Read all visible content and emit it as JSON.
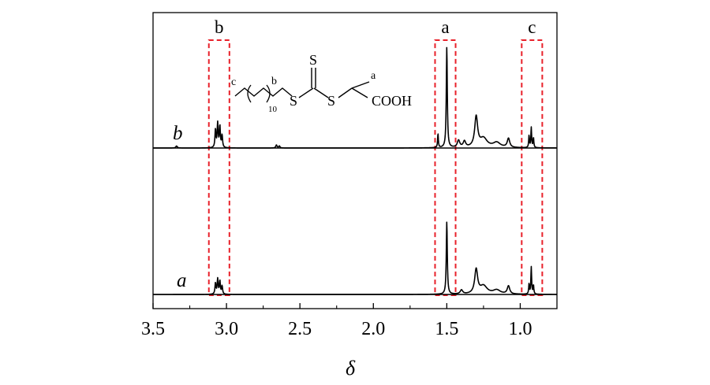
{
  "chart_data": {
    "type": "line",
    "title": "",
    "xlabel": "δ",
    "ylabel": "",
    "xlim": [
      3.5,
      0.75
    ],
    "x_reversed": true,
    "xticks": [
      3.5,
      3.0,
      2.5,
      2.0,
      1.5,
      1.0
    ],
    "xtick_labels": [
      "3.5",
      "3.0",
      "2.5",
      "2.0",
      "1.5",
      "1.0"
    ],
    "grid": false,
    "series": [
      {
        "name": "b",
        "peaks": [
          {
            "ppm": 3.34,
            "h": 0.02,
            "w": 0.006
          },
          {
            "ppm": 3.075,
            "h": 0.18,
            "w": 0.004
          },
          {
            "ppm": 3.06,
            "h": 0.24,
            "w": 0.004
          },
          {
            "ppm": 3.045,
            "h": 0.21,
            "w": 0.004
          },
          {
            "ppm": 3.03,
            "h": 0.12,
            "w": 0.004
          },
          {
            "ppm": 2.66,
            "h": 0.03,
            "w": 0.005
          },
          {
            "ppm": 2.64,
            "h": 0.02,
            "w": 0.005
          },
          {
            "ppm": 1.56,
            "h": 0.14,
            "w": 0.003
          },
          {
            "ppm": 1.5,
            "h": 1.0,
            "w": 0.004
          },
          {
            "ppm": 1.42,
            "h": 0.07,
            "w": 0.01
          },
          {
            "ppm": 1.38,
            "h": 0.06,
            "w": 0.01
          },
          {
            "ppm": 1.3,
            "h": 0.3,
            "w": 0.012
          },
          {
            "ppm": 1.25,
            "h": 0.09,
            "w": 0.03
          },
          {
            "ppm": 1.16,
            "h": 0.05,
            "w": 0.03
          },
          {
            "ppm": 1.08,
            "h": 0.09,
            "w": 0.01
          },
          {
            "ppm": 0.94,
            "h": 0.12,
            "w": 0.003
          },
          {
            "ppm": 0.925,
            "h": 0.2,
            "w": 0.003
          },
          {
            "ppm": 0.91,
            "h": 0.1,
            "w": 0.003
          }
        ]
      },
      {
        "name": "a",
        "peaks": [
          {
            "ppm": 3.075,
            "h": 0.11,
            "w": 0.004
          },
          {
            "ppm": 3.06,
            "h": 0.15,
            "w": 0.004
          },
          {
            "ppm": 3.045,
            "h": 0.13,
            "w": 0.004
          },
          {
            "ppm": 3.03,
            "h": 0.08,
            "w": 0.004
          },
          {
            "ppm": 1.5,
            "h": 0.72,
            "w": 0.004
          },
          {
            "ppm": 1.4,
            "h": 0.04,
            "w": 0.01
          },
          {
            "ppm": 1.3,
            "h": 0.24,
            "w": 0.012
          },
          {
            "ppm": 1.25,
            "h": 0.08,
            "w": 0.03
          },
          {
            "ppm": 1.16,
            "h": 0.04,
            "w": 0.03
          },
          {
            "ppm": 1.08,
            "h": 0.08,
            "w": 0.01
          },
          {
            "ppm": 0.94,
            "h": 0.1,
            "w": 0.003
          },
          {
            "ppm": 0.925,
            "h": 0.27,
            "w": 0.003
          },
          {
            "ppm": 0.91,
            "h": 0.09,
            "w": 0.003
          }
        ]
      }
    ],
    "regions": [
      {
        "label": "b",
        "from": 3.12,
        "to": 2.98
      },
      {
        "label": "a",
        "from": 1.58,
        "to": 1.44
      },
      {
        "label": "c",
        "from": 0.99,
        "to": 0.85
      }
    ],
    "structure": {
      "labels": [
        "c",
        "b",
        "a"
      ],
      "sulfur": "S",
      "subscript": "10",
      "acid": "COOH"
    },
    "colors": {
      "trace": "#000000",
      "region_box": "#e8212a",
      "axis": "#000000"
    }
  }
}
